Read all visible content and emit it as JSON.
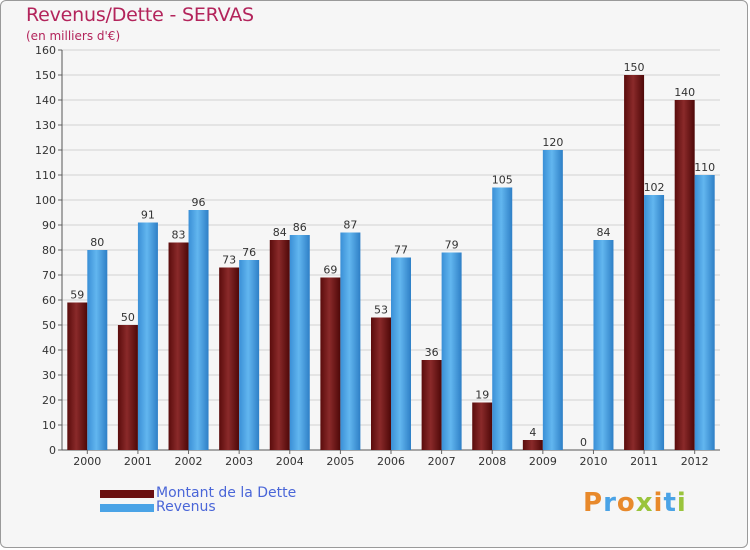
{
  "header": {
    "title": "Revenus/Dette - SERVAS",
    "subtitle": "(en milliers d'€)"
  },
  "chart_data": {
    "type": "bar",
    "categories": [
      "2000",
      "2001",
      "2002",
      "2003",
      "2004",
      "2005",
      "2006",
      "2007",
      "2008",
      "2009",
      "2010",
      "2011",
      "2012"
    ],
    "series": [
      {
        "name": "Montant de la Dette",
        "color": "#7a1c1c",
        "values": [
          59,
          50,
          83,
          73,
          84,
          69,
          53,
          36,
          19,
          4,
          0,
          150,
          140
        ]
      },
      {
        "name": "Revenus",
        "color": "#4aa3e6",
        "values": [
          80,
          91,
          96,
          76,
          86,
          87,
          77,
          79,
          105,
          120,
          84,
          102,
          110
        ]
      }
    ],
    "ylim": [
      0,
      160
    ],
    "yticks": [
      0,
      10,
      20,
      30,
      40,
      50,
      60,
      70,
      80,
      90,
      100,
      110,
      120,
      130,
      140,
      150,
      160
    ],
    "grid": true,
    "legend_position": "bottom-left"
  },
  "legend": {
    "items": [
      {
        "label": "Montant de la Dette",
        "color": "#6b1010"
      },
      {
        "label": "Revenus",
        "color": "#4aa3e6"
      }
    ]
  },
  "brand": {
    "letters": [
      "P",
      "r",
      "o",
      "x",
      "i",
      "t",
      "i"
    ],
    "colors": [
      "#e8892b",
      "#4aa3e6",
      "#e8892b",
      "#9ac43c",
      "#e8892b",
      "#4aa3e6",
      "#9ac43c"
    ]
  }
}
